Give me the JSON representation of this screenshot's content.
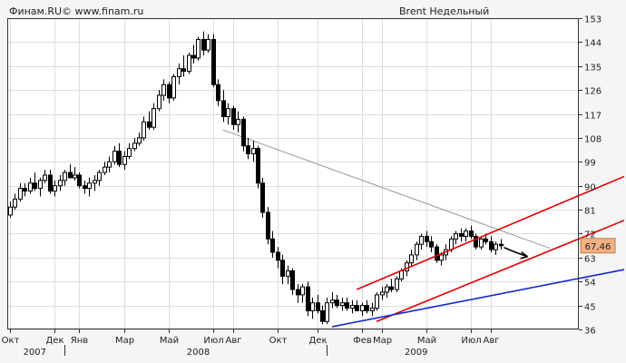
{
  "header": {
    "source": "Финам.RU© www.finam.ru",
    "title": "Brent Недельный"
  },
  "colors": {
    "background": "#f5f5f5",
    "plot_bg": "#ffffff",
    "grid": "#dcdcdc",
    "frame": "#333333",
    "candle_up": "#ffffff",
    "candle_down": "#000000",
    "channel": "#e00000",
    "support": "#1428c8",
    "resistance": "#999999",
    "price_box": "#f4b183"
  },
  "chart_data": {
    "type": "candlestick",
    "title": "Brent Недельный",
    "ylim": [
      36,
      153
    ],
    "y_ticks": [
      36,
      45,
      54,
      63,
      72,
      81,
      90,
      99,
      108,
      117,
      126,
      135,
      144,
      153
    ],
    "x_ticks": [
      {
        "label": "Окт",
        "week": 0
      },
      {
        "label": "Дек",
        "week": 9
      },
      {
        "label": "Янв",
        "week": 14
      },
      {
        "label": "Мар",
        "week": 23
      },
      {
        "label": "Май",
        "week": 32
      },
      {
        "label": "Июл",
        "week": 41
      },
      {
        "label": "Авг",
        "week": 45
      },
      {
        "label": "Окт",
        "week": 54
      },
      {
        "label": "Дек",
        "week": 62
      },
      {
        "label": "Фев",
        "week": 71
      },
      {
        "label": "Мар",
        "week": 75
      },
      {
        "label": "Май",
        "week": 84
      },
      {
        "label": "Июл",
        "week": 93
      },
      {
        "label": "Авг",
        "week": 97
      }
    ],
    "year_labels": [
      {
        "label": "2007",
        "week": 5
      },
      {
        "label": "2008",
        "week": 38
      },
      {
        "label": "2009",
        "week": 82
      }
    ],
    "year_separators": [
      11,
      64
    ],
    "last_price_label": "67,46",
    "last_price": 67.46,
    "candles": [
      {
        "o": 79,
        "h": 84,
        "l": 78,
        "c": 82
      },
      {
        "o": 82,
        "h": 87,
        "l": 81,
        "c": 85
      },
      {
        "o": 85,
        "h": 91,
        "l": 84,
        "c": 89
      },
      {
        "o": 89,
        "h": 91,
        "l": 86,
        "c": 88
      },
      {
        "o": 88,
        "h": 93,
        "l": 87,
        "c": 91
      },
      {
        "o": 91,
        "h": 95,
        "l": 88,
        "c": 89
      },
      {
        "o": 89,
        "h": 93,
        "l": 86,
        "c": 92
      },
      {
        "o": 92,
        "h": 96,
        "l": 91,
        "c": 94
      },
      {
        "o": 94,
        "h": 96,
        "l": 87,
        "c": 88
      },
      {
        "o": 88,
        "h": 92,
        "l": 86,
        "c": 90
      },
      {
        "o": 90,
        "h": 94,
        "l": 88,
        "c": 92
      },
      {
        "o": 92,
        "h": 96,
        "l": 90,
        "c": 95
      },
      {
        "o": 95,
        "h": 98,
        "l": 93,
        "c": 93
      },
      {
        "o": 93,
        "h": 97,
        "l": 92,
        "c": 94
      },
      {
        "o": 94,
        "h": 95,
        "l": 89,
        "c": 90
      },
      {
        "o": 90,
        "h": 92,
        "l": 87,
        "c": 89
      },
      {
        "o": 89,
        "h": 93,
        "l": 86,
        "c": 91
      },
      {
        "o": 91,
        "h": 94,
        "l": 88,
        "c": 92
      },
      {
        "o": 92,
        "h": 96,
        "l": 90,
        "c": 95
      },
      {
        "o": 95,
        "h": 99,
        "l": 94,
        "c": 97
      },
      {
        "o": 97,
        "h": 101,
        "l": 95,
        "c": 99
      },
      {
        "o": 99,
        "h": 105,
        "l": 98,
        "c": 103
      },
      {
        "o": 103,
        "h": 106,
        "l": 97,
        "c": 98
      },
      {
        "o": 98,
        "h": 103,
        "l": 96,
        "c": 101
      },
      {
        "o": 101,
        "h": 106,
        "l": 100,
        "c": 104
      },
      {
        "o": 104,
        "h": 108,
        "l": 103,
        "c": 106
      },
      {
        "o": 106,
        "h": 110,
        "l": 105,
        "c": 108
      },
      {
        "o": 108,
        "h": 116,
        "l": 107,
        "c": 114
      },
      {
        "o": 114,
        "h": 118,
        "l": 111,
        "c": 112
      },
      {
        "o": 112,
        "h": 121,
        "l": 111,
        "c": 119
      },
      {
        "o": 119,
        "h": 126,
        "l": 118,
        "c": 124
      },
      {
        "o": 124,
        "h": 130,
        "l": 122,
        "c": 128
      },
      {
        "o": 128,
        "h": 129,
        "l": 121,
        "c": 123
      },
      {
        "o": 123,
        "h": 132,
        "l": 122,
        "c": 131
      },
      {
        "o": 131,
        "h": 136,
        "l": 128,
        "c": 134
      },
      {
        "o": 134,
        "h": 139,
        "l": 131,
        "c": 133
      },
      {
        "o": 133,
        "h": 140,
        "l": 132,
        "c": 139
      },
      {
        "o": 139,
        "h": 143,
        "l": 136,
        "c": 138
      },
      {
        "o": 138,
        "h": 146,
        "l": 137,
        "c": 145
      },
      {
        "o": 145,
        "h": 148,
        "l": 139,
        "c": 141
      },
      {
        "o": 141,
        "h": 147,
        "l": 140,
        "c": 145
      },
      {
        "o": 145,
        "h": 147,
        "l": 127,
        "c": 128
      },
      {
        "o": 128,
        "h": 130,
        "l": 120,
        "c": 122
      },
      {
        "o": 122,
        "h": 126,
        "l": 114,
        "c": 116
      },
      {
        "o": 116,
        "h": 121,
        "l": 113,
        "c": 119
      },
      {
        "o": 119,
        "h": 120,
        "l": 111,
        "c": 113
      },
      {
        "o": 113,
        "h": 118,
        "l": 110,
        "c": 115
      },
      {
        "o": 115,
        "h": 116,
        "l": 103,
        "c": 105
      },
      {
        "o": 105,
        "h": 108,
        "l": 100,
        "c": 102
      },
      {
        "o": 102,
        "h": 107,
        "l": 99,
        "c": 104
      },
      {
        "o": 104,
        "h": 105,
        "l": 89,
        "c": 91
      },
      {
        "o": 91,
        "h": 93,
        "l": 78,
        "c": 80
      },
      {
        "o": 80,
        "h": 82,
        "l": 68,
        "c": 70
      },
      {
        "o": 70,
        "h": 73,
        "l": 63,
        "c": 65
      },
      {
        "o": 65,
        "h": 67,
        "l": 59,
        "c": 62
      },
      {
        "o": 62,
        "h": 64,
        "l": 53,
        "c": 56
      },
      {
        "o": 56,
        "h": 60,
        "l": 53,
        "c": 58
      },
      {
        "o": 58,
        "h": 59,
        "l": 49,
        "c": 51
      },
      {
        "o": 51,
        "h": 53,
        "l": 46,
        "c": 49
      },
      {
        "o": 49,
        "h": 53,
        "l": 46,
        "c": 52
      },
      {
        "o": 52,
        "h": 54,
        "l": 41,
        "c": 43
      },
      {
        "o": 43,
        "h": 48,
        "l": 40,
        "c": 46
      },
      {
        "o": 46,
        "h": 49,
        "l": 42,
        "c": 43
      },
      {
        "o": 43,
        "h": 45,
        "l": 38,
        "c": 39
      },
      {
        "o": 39,
        "h": 48,
        "l": 38,
        "c": 46
      },
      {
        "o": 46,
        "h": 50,
        "l": 44,
        "c": 47
      },
      {
        "o": 47,
        "h": 49,
        "l": 44,
        "c": 45
      },
      {
        "o": 45,
        "h": 48,
        "l": 43,
        "c": 46
      },
      {
        "o": 46,
        "h": 48,
        "l": 43,
        "c": 44
      },
      {
        "o": 44,
        "h": 47,
        "l": 42,
        "c": 45
      },
      {
        "o": 45,
        "h": 47,
        "l": 43,
        "c": 43
      },
      {
        "o": 43,
        "h": 46,
        "l": 41,
        "c": 45
      },
      {
        "o": 45,
        "h": 47,
        "l": 42,
        "c": 43
      },
      {
        "o": 43,
        "h": 46,
        "l": 41,
        "c": 44
      },
      {
        "o": 44,
        "h": 50,
        "l": 43,
        "c": 49
      },
      {
        "o": 49,
        "h": 52,
        "l": 47,
        "c": 50
      },
      {
        "o": 50,
        "h": 53,
        "l": 48,
        "c": 52
      },
      {
        "o": 52,
        "h": 55,
        "l": 50,
        "c": 51
      },
      {
        "o": 51,
        "h": 56,
        "l": 50,
        "c": 55
      },
      {
        "o": 55,
        "h": 59,
        "l": 54,
        "c": 58
      },
      {
        "o": 58,
        "h": 62,
        "l": 56,
        "c": 61
      },
      {
        "o": 61,
        "h": 66,
        "l": 60,
        "c": 64
      },
      {
        "o": 64,
        "h": 69,
        "l": 62,
        "c": 68
      },
      {
        "o": 68,
        "h": 72,
        "l": 66,
        "c": 71
      },
      {
        "o": 71,
        "h": 73,
        "l": 67,
        "c": 69
      },
      {
        "o": 69,
        "h": 71,
        "l": 65,
        "c": 67
      },
      {
        "o": 67,
        "h": 68,
        "l": 61,
        "c": 62
      },
      {
        "o": 62,
        "h": 65,
        "l": 60,
        "c": 64
      },
      {
        "o": 64,
        "h": 68,
        "l": 62,
        "c": 66
      },
      {
        "o": 66,
        "h": 71,
        "l": 65,
        "c": 70
      },
      {
        "o": 70,
        "h": 73,
        "l": 68,
        "c": 72
      },
      {
        "o": 72,
        "h": 74,
        "l": 69,
        "c": 71
      },
      {
        "o": 71,
        "h": 74,
        "l": 69,
        "c": 73
      },
      {
        "o": 73,
        "h": 75,
        "l": 70,
        "c": 71
      },
      {
        "o": 71,
        "h": 72,
        "l": 66,
        "c": 67
      },
      {
        "o": 67,
        "h": 71,
        "l": 66,
        "c": 70
      },
      {
        "o": 70,
        "h": 72,
        "l": 68,
        "c": 69
      },
      {
        "o": 69,
        "h": 71,
        "l": 65,
        "c": 66
      },
      {
        "o": 66,
        "h": 69,
        "l": 64,
        "c": 68
      },
      {
        "o": 68,
        "h": 70,
        "l": 66,
        "c": 67.46
      }
    ],
    "trendlines": [
      {
        "name": "channel-upper",
        "color": "#e00000",
        "p1": {
          "week": 70,
          "price": 51
        },
        "p2": {
          "week": 124,
          "price": 93.5
        }
      },
      {
        "name": "channel-lower",
        "color": "#e00000",
        "p1": {
          "week": 74,
          "price": 39
        },
        "p2": {
          "week": 124,
          "price": 77
        }
      },
      {
        "name": "support",
        "color": "#1428c8",
        "p1": {
          "week": 65,
          "price": 37
        },
        "p2": {
          "week": 124,
          "price": 58.5
        }
      },
      {
        "name": "resistance",
        "color": "#999999",
        "p1": {
          "week": 43,
          "price": 111
        },
        "p2": {
          "week": 109,
          "price": 66.5
        }
      }
    ]
  }
}
